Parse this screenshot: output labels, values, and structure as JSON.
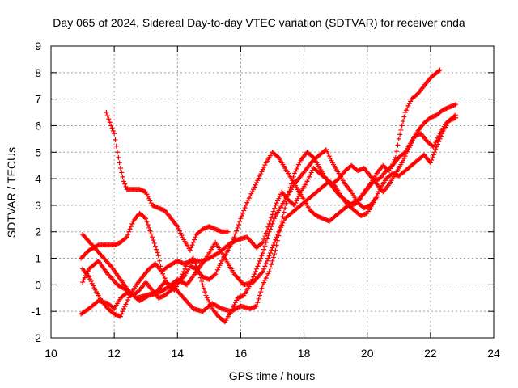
{
  "chart_data": {
    "type": "scatter",
    "title": "Day 065 of 2024, Sidereal Day-to-day VTEC variation (SDTVAR) for receiver cnda",
    "xlabel": "GPS time / hours",
    "ylabel": "SDTVAR / TECUs",
    "xlim": [
      10,
      24
    ],
    "ylim": [
      -2,
      9
    ],
    "xticks": [
      10,
      12,
      14,
      16,
      18,
      20,
      22,
      24
    ],
    "yticks": [
      -2,
      -1,
      0,
      1,
      2,
      3,
      4,
      5,
      6,
      7,
      8,
      9
    ],
    "grid": true,
    "marker": "plus",
    "color": "#ff0000",
    "series": [
      {
        "x": [
          11.75,
          11.9,
          12.0,
          12.1,
          12.2,
          12.3,
          12.4,
          12.5,
          12.6,
          12.8,
          13.0,
          13.2,
          13.4,
          13.6,
          13.8,
          14.0,
          14.2,
          14.4,
          14.6,
          14.8,
          15.0,
          15.2,
          15.4,
          15.6
        ],
        "y": [
          6.5,
          6.0,
          5.7,
          5.0,
          4.4,
          3.9,
          3.6,
          3.6,
          3.6,
          3.6,
          3.5,
          3.0,
          2.9,
          2.8,
          2.5,
          2.2,
          1.7,
          1.3,
          1.9,
          2.1,
          2.2,
          2.1,
          2.0,
          2.0
        ]
      },
      {
        "x": [
          10.95,
          11.2,
          11.5,
          11.8,
          12.0,
          12.2,
          12.4,
          12.6,
          12.8,
          13.0,
          13.2,
          13.4,
          13.5,
          13.7,
          14.0,
          14.2,
          14.5,
          14.8,
          15.0,
          15.3,
          15.6,
          15.9,
          16.2,
          16.5,
          16.7,
          16.9,
          17.1,
          17.3,
          17.5,
          17.7,
          17.9,
          18.1,
          18.3,
          18.5,
          18.7,
          18.9,
          19.1,
          19.3,
          19.5,
          19.7,
          19.9,
          20.1,
          20.3,
          20.5,
          20.7,
          20.9,
          21.0,
          21.2,
          21.4,
          21.6,
          21.8,
          22.0,
          22.3
        ],
        "y": [
          1.0,
          1.3,
          1.5,
          1.5,
          1.5,
          1.6,
          1.8,
          2.4,
          2.7,
          2.5,
          1.8,
          1.1,
          0.5,
          0.7,
          0.9,
          0.8,
          0.9,
          0.9,
          1.0,
          1.2,
          1.5,
          1.7,
          1.8,
          1.4,
          1.6,
          2.3,
          3.0,
          3.5,
          3.2,
          3.0,
          3.5,
          3.9,
          4.4,
          4.2,
          4.0,
          3.7,
          3.4,
          3.2,
          3.0,
          3.1,
          3.5,
          3.8,
          4.2,
          4.5,
          4.3,
          4.8,
          5.5,
          6.5,
          7.0,
          7.2,
          7.5,
          7.8,
          8.1
        ]
      },
      {
        "x": [
          10.95,
          11.2,
          11.5,
          11.8,
          12.0,
          12.2,
          12.4,
          12.6,
          12.8,
          13.0,
          13.2,
          13.4,
          13.6,
          13.8,
          14.0,
          14.2,
          14.4,
          14.6,
          14.8,
          15.0,
          15.2,
          15.4,
          15.6,
          15.8,
          16.0,
          16.2,
          16.4,
          16.6,
          16.8,
          17.0,
          17.2,
          17.4,
          17.6,
          17.8,
          18.0,
          18.2,
          18.4,
          18.6,
          18.8,
          19.0,
          19.2,
          19.4,
          19.6,
          19.8,
          20.0,
          20.2,
          20.4,
          20.6,
          20.8,
          21.0,
          21.2,
          21.4,
          21.6,
          21.8,
          22.0,
          22.2,
          22.4,
          22.6,
          22.8
        ],
        "y": [
          -1.1,
          -0.9,
          -0.6,
          -0.7,
          -0.9,
          -0.5,
          -0.3,
          -0.4,
          -0.2,
          0.1,
          -0.2,
          -0.5,
          -0.4,
          -0.2,
          0.1,
          0.3,
          0.7,
          0.6,
          0.3,
          0.2,
          0.4,
          0.9,
          1.3,
          1.8,
          2.5,
          3.1,
          3.6,
          4.1,
          4.6,
          5.0,
          4.8,
          4.4,
          4.0,
          3.6,
          3.2,
          2.8,
          2.6,
          2.5,
          2.4,
          2.6,
          2.8,
          3.0,
          3.1,
          3.3,
          3.6,
          3.9,
          4.0,
          4.3,
          4.5,
          4.8,
          5.0,
          5.4,
          5.8,
          6.1,
          6.3,
          6.4,
          6.6,
          6.7,
          6.8
        ]
      },
      {
        "x": [
          11.0,
          11.2,
          11.4,
          11.6,
          11.8,
          12.0,
          12.2,
          12.3,
          12.5,
          12.7,
          12.9,
          13.1,
          13.3,
          13.5,
          13.7,
          13.9,
          14.1,
          14.3,
          14.5,
          14.7,
          14.9,
          15.1,
          15.3,
          15.5,
          15.7,
          15.9,
          16.1,
          16.3,
          16.5,
          16.7,
          16.9,
          17.1,
          17.3,
          17.5,
          17.7,
          17.9,
          18.1,
          18.3,
          18.5,
          18.7,
          18.9,
          19.1,
          19.3,
          19.5,
          19.7,
          19.9,
          20.1,
          20.3
        ],
        "y": [
          0.6,
          0.3,
          -0.2,
          -0.6,
          -0.9,
          -1.1,
          -1.2,
          -0.9,
          -0.4,
          0.0,
          0.3,
          0.6,
          0.8,
          0.5,
          0.0,
          -0.2,
          0.2,
          0.8,
          1.0,
          0.4,
          -0.4,
          -0.9,
          -1.2,
          -1.4,
          -1.0,
          -0.5,
          -0.4,
          0.0,
          0.6,
          1.2,
          2.0,
          2.6,
          3.0,
          3.4,
          3.8,
          4.1,
          4.4,
          4.7,
          4.9,
          5.1,
          4.6,
          4.2,
          3.8,
          3.5,
          3.1,
          2.9,
          3.0,
          3.3
        ]
      },
      {
        "x": [
          11.0,
          11.2,
          11.5,
          11.8,
          12.1,
          12.4,
          12.7,
          13.0,
          13.3,
          13.6,
          13.9,
          14.2,
          14.5,
          14.8,
          15.1,
          15.4,
          15.7,
          16.0,
          16.3,
          16.5,
          16.7,
          16.9,
          17.1,
          17.3,
          17.5,
          17.7,
          17.9,
          18.1,
          18.3,
          18.5,
          18.7,
          18.9,
          19.1,
          19.3,
          19.5,
          19.7,
          19.9,
          20.1,
          20.3,
          20.5,
          20.7,
          20.9,
          21.1,
          21.3,
          21.5,
          21.7,
          21.9,
          22.1,
          22.3,
          22.5,
          22.8
        ],
        "y": [
          0.1,
          0.6,
          0.9,
          0.4,
          0.0,
          -0.2,
          -0.5,
          -0.4,
          -0.3,
          0.1,
          -0.1,
          -0.5,
          -0.9,
          -1.0,
          -0.7,
          -0.9,
          -1.0,
          -0.8,
          -0.9,
          -0.8,
          0.0,
          0.5,
          1.3,
          2.4,
          3.4,
          4.2,
          4.7,
          5.0,
          4.8,
          4.4,
          4.0,
          3.8,
          4.0,
          4.3,
          4.5,
          4.3,
          4.4,
          4.1,
          3.8,
          3.5,
          3.8,
          4.2,
          4.6,
          5.1,
          5.6,
          5.7,
          5.4,
          5.2,
          5.7,
          6.1,
          6.4
        ]
      },
      {
        "x": [
          11.0,
          11.3,
          11.6,
          11.9,
          12.2,
          12.5,
          12.8,
          13.1,
          13.4,
          13.7,
          14.0,
          14.3,
          14.6,
          14.9,
          15.2,
          15.5,
          15.8,
          16.1,
          16.4,
          16.7,
          17.0,
          17.2,
          17.4,
          17.6,
          17.8,
          18.0,
          18.2,
          18.4,
          18.6,
          18.8,
          19.0,
          19.2,
          19.4,
          19.6,
          19.8,
          20.0,
          20.2,
          20.4,
          20.6,
          20.8,
          21.0,
          21.2,
          21.4,
          21.6,
          21.8,
          22.0,
          22.2,
          22.4,
          22.6,
          22.8
        ],
        "y": [
          1.9,
          1.5,
          1.1,
          0.7,
          0.2,
          -0.3,
          -0.6,
          -0.4,
          -0.3,
          -0.1,
          0.2,
          0.0,
          0.5,
          1.0,
          1.6,
          1.0,
          0.4,
          0.0,
          0.1,
          0.5,
          1.4,
          2.0,
          2.5,
          2.7,
          2.9,
          3.1,
          3.3,
          3.5,
          3.7,
          3.9,
          3.7,
          3.3,
          3.0,
          2.8,
          2.6,
          2.7,
          3.1,
          3.6,
          4.0,
          4.2,
          4.1,
          4.3,
          4.5,
          4.7,
          4.9,
          4.6,
          5.2,
          5.8,
          6.2,
          6.3
        ]
      }
    ]
  }
}
